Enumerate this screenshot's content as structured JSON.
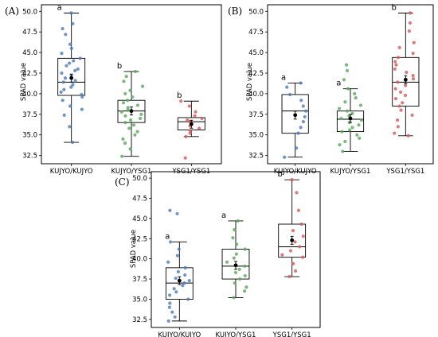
{
  "chart_data": [
    {
      "type": "box",
      "panel_label": "(A)",
      "ylabel": "SPAD value",
      "yticks": [
        "32.5",
        "35.0",
        "37.5",
        "40.0",
        "42.5",
        "45.0",
        "47.5",
        "50.0"
      ],
      "categories": [
        "KUJYO/KUJYO",
        "KUJYO/YSG1",
        "YSG1/YSG1"
      ],
      "colors": [
        "#4c7bb8",
        "#5aa65a",
        "#d45a5a"
      ],
      "boxes": [
        {
          "min": 34.1,
          "q1": 39.8,
          "median": 41.4,
          "q3": 44.3,
          "max": 49.8,
          "mean": 41.9,
          "letter": "a",
          "points": [
            49.8,
            48.5,
            47.9,
            47.2,
            46.0,
            45.5,
            44.9,
            44.3,
            44.0,
            43.7,
            43.4,
            43.0,
            42.8,
            42.5,
            42.2,
            41.9,
            41.6,
            41.4,
            41.1,
            40.8,
            40.5,
            40.2,
            39.9,
            39.6,
            39.2,
            38.5,
            38.1,
            37.4,
            36.0,
            34.1
          ]
        },
        {
          "min": 32.4,
          "q1": 36.5,
          "median": 37.9,
          "q3": 39.2,
          "max": 42.7,
          "mean": 37.9,
          "letter": "b",
          "points": [
            42.7,
            42.1,
            41.5,
            40.9,
            40.4,
            40.0,
            39.6,
            39.2,
            38.9,
            38.6,
            38.3,
            38.0,
            37.8,
            37.5,
            37.3,
            37.0,
            36.8,
            36.5,
            36.2,
            35.8,
            35.4,
            35.0,
            34.5,
            34.0,
            33.3,
            32.4
          ]
        },
        {
          "min": 34.8,
          "q1": 35.6,
          "median": 36.6,
          "q3": 37.1,
          "max": 39.1,
          "mean": 36.3,
          "letter": "b",
          "points": [
            39.1,
            38.5,
            37.8,
            37.3,
            37.0,
            36.8,
            36.6,
            36.4,
            36.1,
            35.8,
            35.5,
            35.2,
            34.8,
            32.2
          ]
        }
      ]
    },
    {
      "type": "box",
      "panel_label": "(B)",
      "ylabel": "SPAD value",
      "yticks": [
        "32.5",
        "35.0",
        "37.5",
        "40.0",
        "42.5",
        "45.0",
        "47.5",
        "50.0"
      ],
      "categories": [
        "KUJYO/KUJYO",
        "KUJYO/YSG1",
        "YSG1/YSG1"
      ],
      "colors": [
        "#4c7bb8",
        "#5aa65a",
        "#d45a5a"
      ],
      "boxes": [
        {
          "min": 32.3,
          "q1": 35.2,
          "median": 37.9,
          "q3": 39.9,
          "max": 41.3,
          "mean": 37.4,
          "letter": "a",
          "points": [
            41.3,
            40.8,
            39.9,
            39.2,
            38.5,
            37.9,
            37.2,
            36.6,
            35.9,
            35.2,
            33.4,
            32.3
          ]
        },
        {
          "min": 33.0,
          "q1": 35.4,
          "median": 36.9,
          "q3": 37.9,
          "max": 40.6,
          "mean": 37.0,
          "letter": "a",
          "points": [
            43.5,
            42.8,
            41.7,
            40.6,
            40.0,
            39.5,
            39.0,
            38.6,
            38.2,
            37.9,
            37.6,
            37.3,
            37.0,
            36.8,
            36.5,
            36.2,
            35.9,
            35.6,
            35.4,
            35.0,
            34.6,
            34.2,
            33.8,
            33.0
          ]
        },
        {
          "min": 34.9,
          "q1": 38.5,
          "median": 41.4,
          "q3": 44.4,
          "max": 49.8,
          "mean": 41.7,
          "letter": "b",
          "points": [
            49.8,
            48.6,
            47.6,
            46.2,
            45.6,
            44.9,
            44.4,
            43.9,
            43.5,
            43.0,
            42.6,
            42.2,
            41.8,
            41.4,
            41.0,
            40.6,
            40.2,
            39.8,
            39.4,
            38.9,
            38.5,
            38.0,
            37.4,
            36.8,
            36.0,
            35.2,
            34.9
          ]
        }
      ]
    },
    {
      "type": "box",
      "panel_label": "(C)",
      "ylabel": "SPAD value",
      "yticks": [
        "32.5",
        "35.0",
        "37.5",
        "40.0",
        "42.5",
        "45.0",
        "47.5",
        "50.0"
      ],
      "categories": [
        "KUJYO/KUJYO",
        "KUJYO/YSG1",
        "YSG1/YSG1"
      ],
      "colors": [
        "#4c7bb8",
        "#5aa65a",
        "#d45a5a"
      ],
      "boxes": [
        {
          "min": 32.3,
          "q1": 35.0,
          "median": 37.0,
          "q3": 38.9,
          "max": 42.1,
          "mean": 37.3,
          "letter": "a",
          "points": [
            46.0,
            45.6,
            42.1,
            41.2,
            40.4,
            39.6,
            38.9,
            38.4,
            38.0,
            37.6,
            37.3,
            37.0,
            36.7,
            36.3,
            35.9,
            35.5,
            35.0,
            34.5,
            34.0,
            33.4,
            32.8,
            32.3
          ]
        },
        {
          "min": 35.2,
          "q1": 37.5,
          "median": 39.1,
          "q3": 41.2,
          "max": 44.7,
          "mean": 39.2,
          "letter": "a",
          "points": [
            44.7,
            43.6,
            42.6,
            41.8,
            41.2,
            40.6,
            40.1,
            39.6,
            39.1,
            38.7,
            38.3,
            37.9,
            37.5,
            37.0,
            36.5,
            36.0,
            35.2
          ]
        },
        {
          "min": 37.8,
          "q1": 40.2,
          "median": 41.5,
          "q3": 44.3,
          "max": 49.8,
          "mean": 42.3,
          "letter": "b",
          "points": [
            49.8,
            48.2,
            46.0,
            44.3,
            43.5,
            42.8,
            42.1,
            41.5,
            41.0,
            40.5,
            40.2,
            39.4,
            38.5,
            37.8
          ]
        }
      ]
    }
  ]
}
